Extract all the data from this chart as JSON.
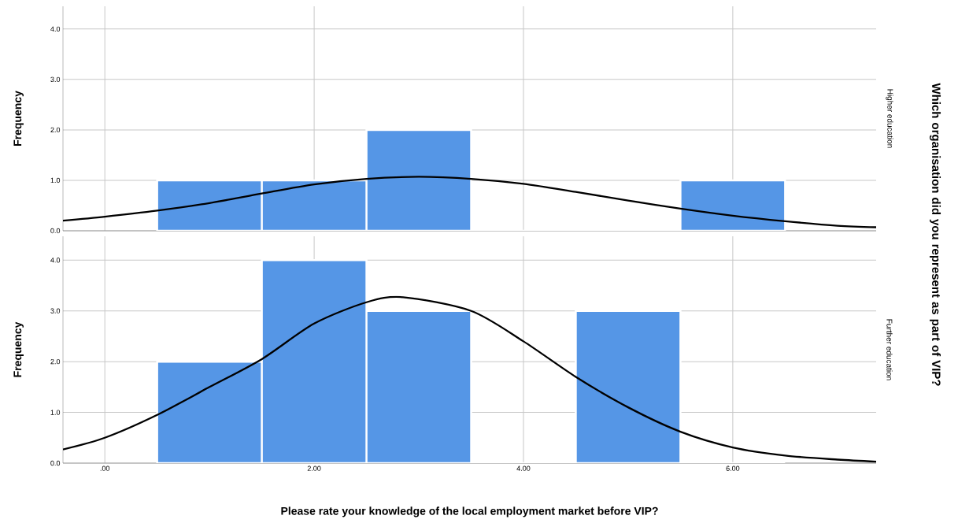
{
  "chart_data": [
    {
      "type": "histogram",
      "ylabel": "Frequency",
      "y2label": "Which organisation did you represent as part of VIP?",
      "bins": [
        0.5,
        1.5,
        2.5,
        3.5,
        4.5,
        5.5,
        6.5
      ],
      "values": [
        1,
        1,
        2,
        0,
        0,
        1
      ],
      "color": "#5596e6",
      "series": [
        {
          "type": "line",
          "color": "#000000",
          "x": [
            -0.4,
            0,
            0.5,
            1,
            1.5,
            2,
            2.5,
            3,
            3.5,
            4,
            4.5,
            5,
            5.5,
            6,
            6.5,
            7,
            7.37
          ],
          "values": [
            0.2,
            0.28,
            0.4,
            0.55,
            0.74,
            0.92,
            1.03,
            1.07,
            1.03,
            0.93,
            0.77,
            0.6,
            0.44,
            0.3,
            0.19,
            0.1,
            0.07
          ]
        }
      ],
      "xlim": [
        -0.4,
        7.37
      ],
      "ylim": [
        0,
        4.45
      ],
      "xticks": [
        {
          "value": 0,
          "label": null
        },
        {
          "value": 2,
          "label": null
        },
        {
          "value": 4,
          "label": null
        },
        {
          "value": 6,
          "label": null
        }
      ],
      "yticks": [
        {
          "value": 0,
          "label": "0.0"
        },
        {
          "value": 1,
          "label": "1.0"
        },
        {
          "value": 2,
          "label": "2.0"
        },
        {
          "value": 3,
          "label": "3.0"
        },
        {
          "value": 4,
          "label": "4.0"
        }
      ],
      "tick_labels": "y",
      "grid": true,
      "annotations": [
        "Higher education"
      ]
    },
    {
      "type": "histogram",
      "ylabel": "Frequency",
      "xlabel": "Please rate your knowledge of the local employment market before VIP?",
      "bins": [
        0.5,
        1.5,
        2.5,
        3.5,
        4.5,
        5.5,
        6.5
      ],
      "values": [
        2,
        4,
        3,
        0,
        3,
        0
      ],
      "color": "#5596e6",
      "series": [
        {
          "type": "line",
          "color": "#000000",
          "x": [
            -0.4,
            0,
            0.5,
            1,
            1.5,
            2,
            2.5,
            2.85,
            3.5,
            4,
            4.5,
            5,
            5.5,
            6,
            6.5,
            7,
            7.37
          ],
          "values": [
            0.27,
            0.5,
            0.95,
            1.5,
            2.05,
            2.75,
            3.17,
            3.27,
            3.0,
            2.4,
            1.7,
            1.1,
            0.62,
            0.31,
            0.15,
            0.07,
            0.03
          ]
        }
      ],
      "xlim": [
        -0.4,
        7.37
      ],
      "ylim": [
        0,
        4.47
      ],
      "xticks": [
        {
          "value": 0,
          "label": ".00"
        },
        {
          "value": 2,
          "label": "2.00"
        },
        {
          "value": 4,
          "label": "4.00"
        },
        {
          "value": 6,
          "label": "6.00"
        }
      ],
      "yticks": [
        {
          "value": 0,
          "label": "0.0"
        },
        {
          "value": 1,
          "label": "1.0"
        },
        {
          "value": 2,
          "label": "2.0"
        },
        {
          "value": 3,
          "label": "3.0"
        },
        {
          "value": 4,
          "label": "4.0"
        }
      ],
      "grid": true,
      "annotations": [
        "Further education"
      ]
    }
  ]
}
